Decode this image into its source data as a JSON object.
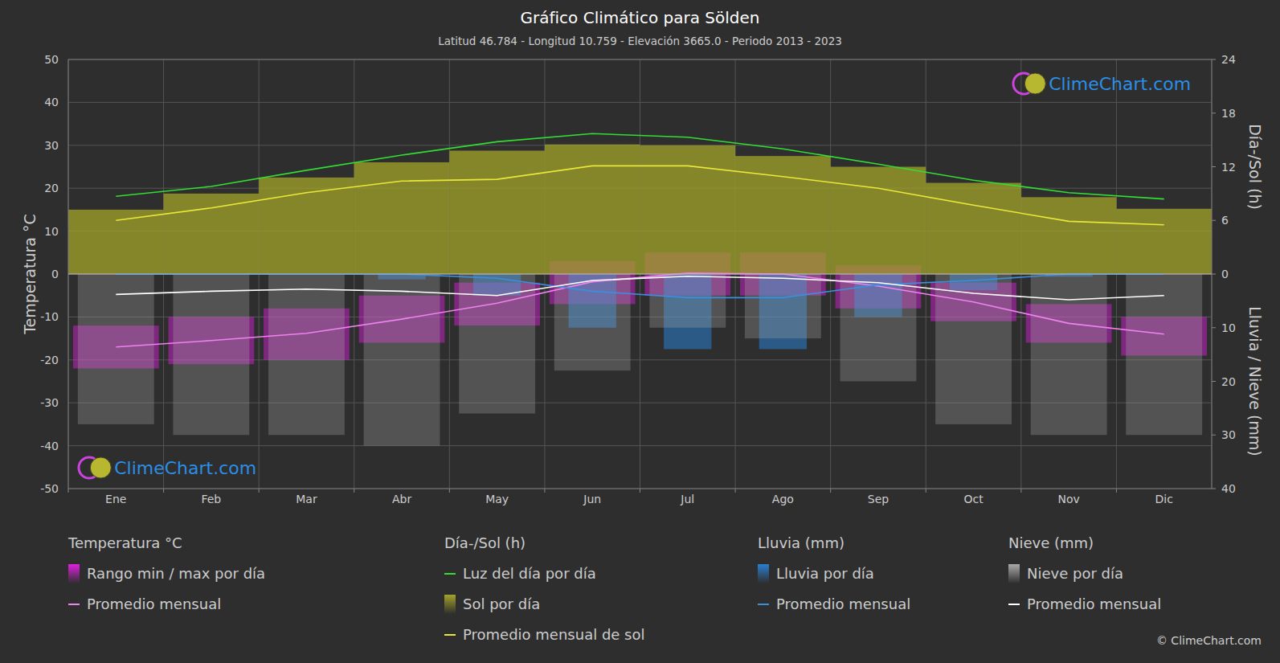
{
  "chart_data": {
    "type": "line",
    "title": "Gráfico Climático para Sölden",
    "subtitle": "Latitud 46.784 - Longitud 10.759 - Elevación 3665.0 - Periodo 2013 - 2023",
    "categories": [
      "Ene",
      "Feb",
      "Mar",
      "Abr",
      "May",
      "Jun",
      "Jul",
      "Ago",
      "Sep",
      "Oct",
      "Nov",
      "Dic"
    ],
    "ylabel": "Temperatura °C",
    "y2label": "Día-/Sol (h)",
    "y3label": "Lluvia / Nieve (mm)",
    "ylim": [
      -50,
      50
    ],
    "yticks": [
      -50,
      -40,
      -30,
      -20,
      -10,
      0,
      10,
      20,
      30,
      40,
      50
    ],
    "y2lim": [
      -24,
      24
    ],
    "y2ticks": [
      0,
      6,
      12,
      18,
      24
    ],
    "y3lim": [
      40,
      -40
    ],
    "y3ticks": [
      10,
      20,
      30,
      40
    ],
    "grid": true,
    "legend": "bottom",
    "legend_groups": [
      "Temperatura °C",
      "Día-/Sol (h)",
      "Lluvia (mm)",
      "Nieve (mm)"
    ],
    "watermark": "ClimeChart.com",
    "copyright": "© ClimeChart.com",
    "series": [
      {
        "name": "Rango min / max por día",
        "type": "range",
        "color": "#e020e0",
        "axis": "y",
        "group": 0,
        "values": [
          -12,
          -10,
          -8,
          -5,
          -2,
          3,
          5,
          5,
          2,
          -2,
          -7,
          -10
        ],
        "min_values": [
          -22,
          -21,
          -20,
          -16,
          -12,
          -7,
          -5,
          -5,
          -8,
          -11,
          -16,
          -19
        ]
      },
      {
        "name": "Promedio mensual",
        "type": "line",
        "color": "#ee82ee",
        "axis": "y",
        "group": 0,
        "values": [
          -17,
          -15.5,
          -13.8,
          -10.5,
          -6.8,
          -1.8,
          0.2,
          0,
          -2.8,
          -6.5,
          -11.5,
          -14
        ]
      },
      {
        "name": "Luz del día por día",
        "type": "line",
        "color": "#33dd33",
        "axis": "y2",
        "group": 1,
        "values": [
          8.7,
          9.8,
          11.6,
          13.3,
          14.8,
          15.7,
          15.3,
          14.0,
          12.3,
          10.5,
          9.1,
          8.4
        ]
      },
      {
        "name": "Sol por día",
        "type": "bar",
        "color": "#a3a32a",
        "axis": "y2",
        "group": 1,
        "values": [
          7.2,
          9.0,
          10.8,
          12.5,
          13.8,
          14.5,
          14.4,
          13.2,
          12.0,
          10.2,
          8.6,
          7.3
        ]
      },
      {
        "name": "Promedio mensual de sol",
        "type": "line",
        "color": "#e8e83a",
        "axis": "y2",
        "group": 1,
        "values": [
          6.0,
          7.4,
          9.1,
          10.4,
          10.6,
          12.1,
          12.1,
          10.9,
          9.6,
          7.7,
          5.9,
          5.5
        ]
      },
      {
        "name": "Lluvia por día",
        "type": "bar",
        "color": "#2a80d0",
        "axis": "y3",
        "group": 2,
        "values": [
          0,
          0,
          0,
          1,
          4,
          10,
          14,
          14,
          8,
          3,
          0.5,
          0
        ]
      },
      {
        "name": "Promedio mensual",
        "type": "line",
        "color": "#3a8fe0",
        "axis": "y3",
        "group": 2,
        "values": [
          0,
          0,
          0,
          0,
          0.8,
          3.2,
          4.4,
          4.4,
          2.0,
          1.2,
          0,
          0
        ]
      },
      {
        "name": "Nieve por día",
        "type": "bar",
        "color": "#aaaaaa",
        "axis": "y3",
        "group": 3,
        "values": [
          28,
          30,
          30,
          32,
          26,
          18,
          10,
          12,
          20,
          28,
          30,
          30
        ]
      },
      {
        "name": "Promedio mensual",
        "type": "line",
        "color": "#ffffff",
        "axis": "y3",
        "group": 3,
        "values": [
          3.8,
          3.2,
          2.8,
          3.2,
          4.0,
          1.2,
          0.4,
          0.8,
          1.6,
          3.6,
          4.8,
          4.0
        ]
      }
    ]
  }
}
